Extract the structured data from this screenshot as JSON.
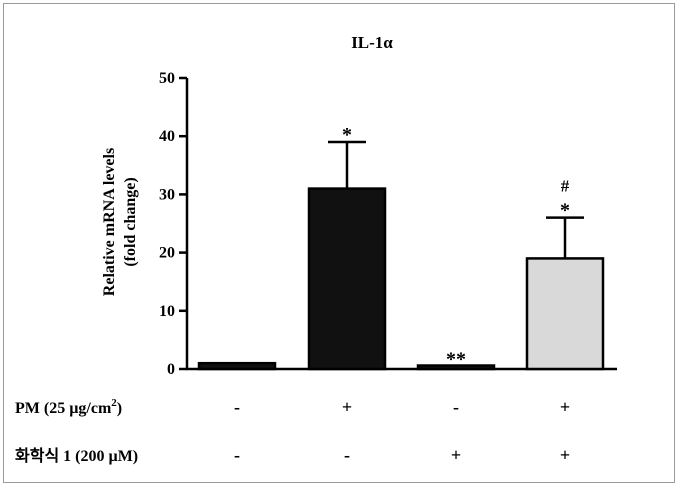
{
  "chart_data": {
    "type": "bar",
    "title": "IL-1α",
    "ylabel_line1": "Relative mRNA levels",
    "ylabel_line2": "(fold change)",
    "ylim": [
      0,
      50
    ],
    "yticks": [
      "0",
      "10",
      "20",
      "30",
      "40",
      "50"
    ],
    "grid": false,
    "bars": [
      {
        "value": 1.0,
        "error": 0,
        "color": "#111111",
        "annotation": "",
        "annotation2": ""
      },
      {
        "value": 31.0,
        "error": 8.0,
        "color": "#111111",
        "annotation": "*",
        "annotation2": ""
      },
      {
        "value": 0.6,
        "error": 0,
        "color": "#111111",
        "annotation": "**",
        "annotation2": ""
      },
      {
        "value": 19.0,
        "error": 7.0,
        "color": "#d9d9d9",
        "annotation": "*",
        "annotation2": "#"
      }
    ],
    "treatment_rows": [
      {
        "label": "PM (25 µg/cm",
        "superscript": "2",
        "label_suffix": ")",
        "signs": [
          "-",
          "+",
          "-",
          "+"
        ]
      },
      {
        "label": "화학식 1 (200 µM)",
        "signs": [
          "-",
          "-",
          "+",
          "+"
        ]
      }
    ]
  }
}
